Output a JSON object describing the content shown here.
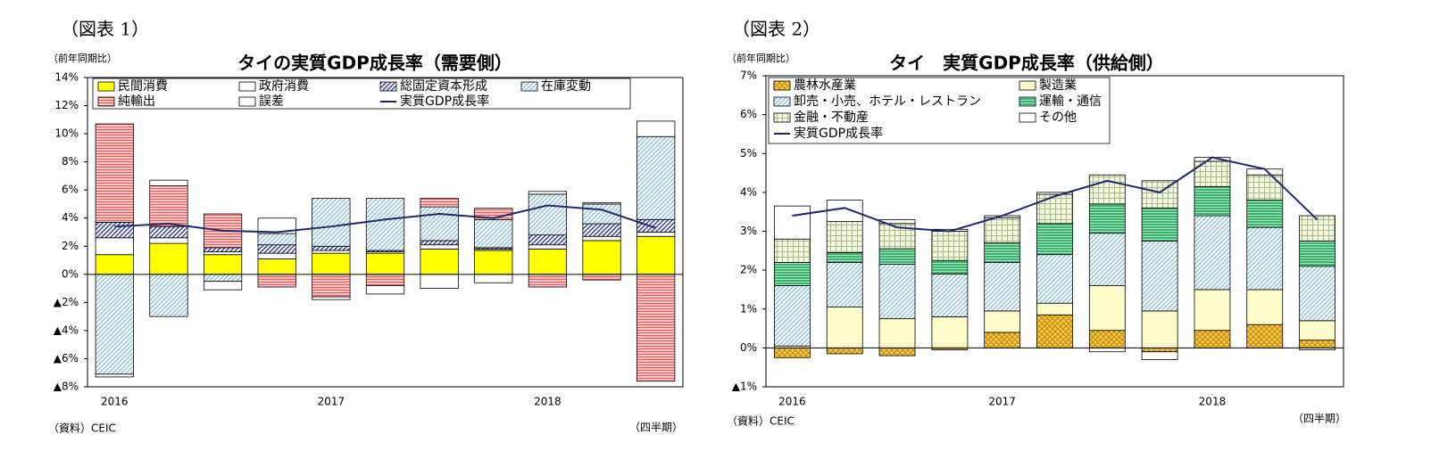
{
  "chart_data": [
    {
      "type": "bar",
      "stacked": true,
      "figure_label": "（図表 1）",
      "title": "タイの実質GDP成長率（需要側）",
      "y_axis_label": "（前年同期比）",
      "source": "（資料）CEIC",
      "x_axis_label": "（四半期）",
      "categories": [
        "2016",
        null,
        null,
        null,
        "2017",
        null,
        null,
        null,
        "2018",
        null,
        null
      ],
      "ylim": [
        -8,
        14
      ],
      "yticks": [
        {
          "value": -8,
          "label": "▲8%"
        },
        {
          "value": -6,
          "label": "▲6%"
        },
        {
          "value": -4,
          "label": "▲4%"
        },
        {
          "value": -2,
          "label": "▲2%"
        },
        {
          "value": 0,
          "label": "0%"
        },
        {
          "value": 2,
          "label": "2%"
        },
        {
          "value": 4,
          "label": "4%"
        },
        {
          "value": 6,
          "label": "6%"
        },
        {
          "value": 8,
          "label": "8%"
        },
        {
          "value": 10,
          "label": "10%"
        },
        {
          "value": 12,
          "label": "12%"
        },
        {
          "value": 14,
          "label": "14%"
        }
      ],
      "legend": "top-left",
      "legend_columns": 4,
      "series": [
        {
          "name": "民間消費",
          "pattern": "solid",
          "fill": "#ffff00",
          "color": "#ffff00",
          "values": [
            1.4,
            2.2,
            1.4,
            1.1,
            1.5,
            1.5,
            1.8,
            1.7,
            1.8,
            2.4,
            2.7
          ]
        },
        {
          "name": "政府消費",
          "pattern": "solid",
          "fill": "#ffffff",
          "color": "#ffffff",
          "values": [
            1.2,
            0.4,
            0.2,
            0.4,
            0.2,
            0.1,
            0.3,
            0.1,
            0.3,
            0.3,
            0.3
          ]
        },
        {
          "name": "総固定資本形成",
          "pattern": "diag",
          "fill": "#ffffff",
          "color": "#2b3a9c",
          "values": [
            1.1,
            0.8,
            0.3,
            0.6,
            0.3,
            0.1,
            0.3,
            0.1,
            0.7,
            0.9,
            0.9
          ]
        },
        {
          "name": "在庫変動",
          "pattern": "diag",
          "fill": "#ffffff",
          "color": "#8cc0e0",
          "values": [
            -7.1,
            -3.0,
            -0.5,
            0.8,
            3.4,
            3.7,
            2.4,
            2.0,
            2.9,
            1.4,
            5.9
          ]
        },
        {
          "name": "純輸出",
          "pattern": "horiz",
          "fill": "#f8c4c4",
          "color": "#e85a5a",
          "values": [
            7.0,
            2.9,
            2.4,
            -0.9,
            -1.6,
            -0.8,
            0.6,
            0.8,
            -0.9,
            -0.4,
            -7.6
          ]
        },
        {
          "name": "誤差",
          "pattern": "solid",
          "fill": "#ffffff",
          "color": "#ffffff",
          "values": [
            -0.2,
            0.4,
            -0.6,
            1.1,
            -0.2,
            -0.6,
            -1.0,
            -0.6,
            0.2,
            0.1,
            1.1
          ]
        },
        {
          "name": "実質GDP成長率",
          "type": "line",
          "color": "#1f2a6e",
          "values": [
            3.4,
            3.6,
            3.1,
            3.0,
            3.4,
            3.9,
            4.3,
            4.0,
            4.9,
            4.6,
            3.3
          ]
        }
      ]
    },
    {
      "type": "bar",
      "stacked": true,
      "figure_label": "（図表 2）",
      "title": "タイ　実質GDP成長率（供給側）",
      "y_axis_label": "（前年同期比）",
      "source": "（資料）CEIC",
      "x_axis_label": "（四半期）",
      "categories": [
        "2016",
        null,
        null,
        null,
        "2017",
        null,
        null,
        null,
        "2018",
        null,
        null
      ],
      "ylim": [
        -1,
        7
      ],
      "yticks": [
        {
          "value": -1,
          "label": "▲1%"
        },
        {
          "value": 0,
          "label": "0%"
        },
        {
          "value": 1,
          "label": "1%"
        },
        {
          "value": 2,
          "label": "2%"
        },
        {
          "value": 3,
          "label": "3%"
        },
        {
          "value": 4,
          "label": "4%"
        },
        {
          "value": 5,
          "label": "5%"
        },
        {
          "value": 6,
          "label": "6%"
        },
        {
          "value": 7,
          "label": "7%"
        }
      ],
      "legend": "top-left",
      "legend_columns": 2,
      "series": [
        {
          "name": "農林水産業",
          "pattern": "cross",
          "fill": "#f5c842",
          "color": "#c08a10",
          "values": [
            -0.25,
            -0.15,
            -0.2,
            -0.05,
            0.4,
            0.85,
            0.45,
            -0.1,
            0.45,
            0.6,
            0.2
          ]
        },
        {
          "name": "製造業",
          "pattern": "solid",
          "fill": "#fefcc8",
          "color": "#fefcc8",
          "values": [
            0.05,
            1.05,
            0.75,
            0.8,
            0.55,
            0.3,
            1.15,
            0.95,
            1.05,
            0.9,
            0.5
          ]
        },
        {
          "name": "卸売・小売、ホテル・レストラン",
          "pattern": "diag",
          "fill": "#ffffff",
          "color": "#8cc0e0",
          "values": [
            1.55,
            1.15,
            1.4,
            1.1,
            1.25,
            1.25,
            1.35,
            1.8,
            1.9,
            1.6,
            1.4
          ]
        },
        {
          "name": "運輸・通信",
          "pattern": "horiz",
          "fill": "#3cb371",
          "color": "#a8e6c0",
          "values": [
            0.6,
            0.25,
            0.4,
            0.35,
            0.5,
            0.8,
            0.75,
            0.85,
            0.75,
            0.7,
            0.65
          ]
        },
        {
          "name": "金融・不動産",
          "pattern": "grid",
          "fill": "#f2f6e2",
          "color": "#a8b888",
          "values": [
            0.6,
            0.8,
            0.65,
            0.75,
            0.65,
            0.75,
            0.75,
            0.7,
            0.65,
            0.65,
            0.65
          ]
        },
        {
          "name": "その他",
          "pattern": "solid",
          "fill": "#ffffff",
          "color": "#ffffff",
          "values": [
            0.85,
            0.55,
            0.1,
            0.05,
            0.05,
            0.05,
            -0.1,
            -0.2,
            0.1,
            0.15,
            -0.05
          ]
        },
        {
          "name": "実質GDP成長率",
          "type": "line",
          "color": "#1f2a6e",
          "values": [
            3.4,
            3.6,
            3.1,
            3.0,
            3.4,
            3.9,
            4.3,
            4.0,
            4.9,
            4.6,
            3.3
          ]
        }
      ]
    }
  ]
}
